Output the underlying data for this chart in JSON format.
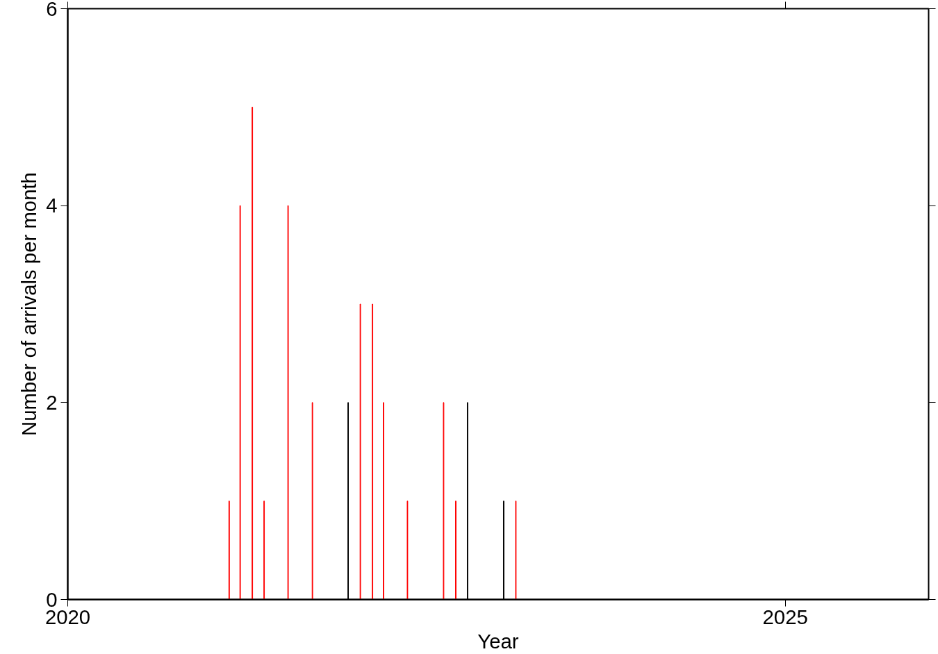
{
  "chart_data": {
    "type": "bar",
    "xlabel": "Year",
    "ylabel": "Number of arrivals per month",
    "x": [
      "2021-02-15",
      "2021-03-15",
      "2021-04-15",
      "2021-05-15",
      "2021-07-15",
      "2021-09-15",
      "2021-12-15",
      "2022-01-15",
      "2022-02-15",
      "2022-03-15",
      "2022-05-15",
      "2022-08-15",
      "2022-09-15",
      "2022-10-15",
      "2023-01-15",
      "2023-02-15"
    ],
    "values": [
      1,
      4,
      5,
      1,
      4,
      2,
      2,
      3,
      3,
      2,
      1,
      2,
      1,
      2,
      1,
      1
    ],
    "colors": [
      "#ff0000",
      "#ff0000",
      "#ff0000",
      "#ff0000",
      "#ff0000",
      "#ff0000",
      "#000000",
      "#ff0000",
      "#ff0000",
      "#ff0000",
      "#ff0000",
      "#ff0000",
      "#ff0000",
      "#000000",
      "#000000",
      "#ff0000"
    ],
    "xlim": [
      "2020-01-01",
      "2026-01-01"
    ],
    "xticks": [
      {
        "value": "2020",
        "label": "2020"
      },
      {
        "value": "2025",
        "label": "2025"
      }
    ],
    "ylim": [
      0,
      6
    ],
    "yticks": [
      0,
      2,
      4,
      6
    ],
    "grid": false
  }
}
